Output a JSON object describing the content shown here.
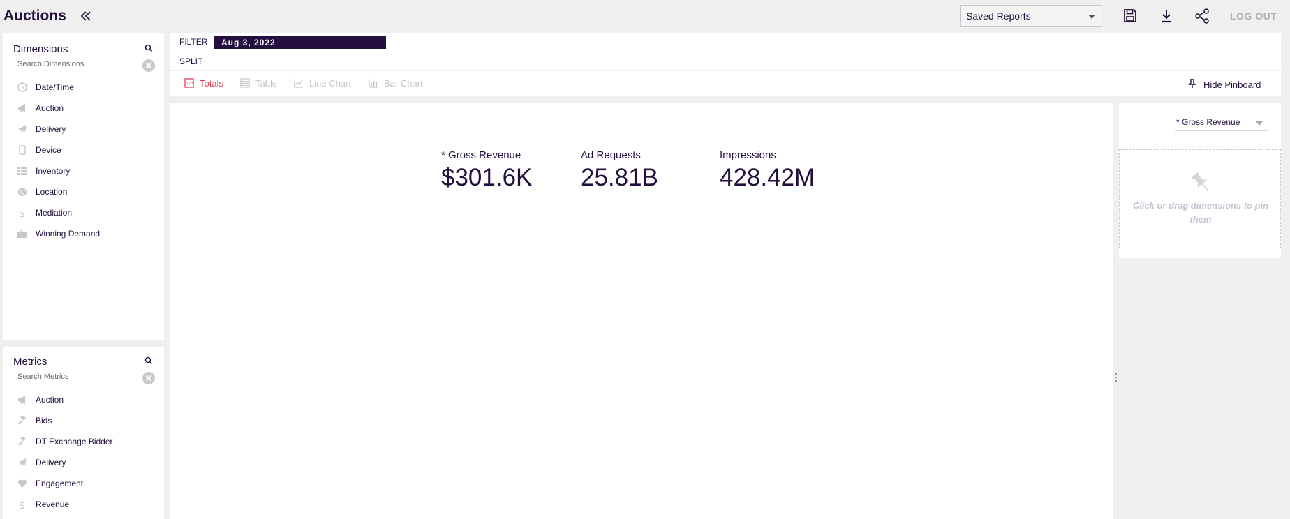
{
  "header": {
    "title": "Auctions",
    "saved_reports_label": "Saved Reports",
    "logout_label": "LOG OUT"
  },
  "dimensions": {
    "title": "Dimensions",
    "search_placeholder": "Search Dimensions",
    "items": [
      {
        "label": "Date/Time",
        "icon": "clock-icon"
      },
      {
        "label": "Auction",
        "icon": "megaphone-icon"
      },
      {
        "label": "Delivery",
        "icon": "paper-plane-icon"
      },
      {
        "label": "Device",
        "icon": "mobile-device-icon"
      },
      {
        "label": "Inventory",
        "icon": "grid-icon"
      },
      {
        "label": "Location",
        "icon": "globe-icon"
      },
      {
        "label": "Mediation",
        "icon": "dollar-icon"
      },
      {
        "label": "Winning Demand",
        "icon": "briefcase-icon"
      }
    ]
  },
  "metrics": {
    "title": "Metrics",
    "search_placeholder": "Search Metrics",
    "items": [
      {
        "label": "Auction",
        "icon": "megaphone-icon"
      },
      {
        "label": "Bids",
        "icon": "gavel-icon"
      },
      {
        "label": "DT Exchange Bidder",
        "icon": "gavel-icon"
      },
      {
        "label": "Delivery",
        "icon": "paper-plane-icon"
      },
      {
        "label": "Engagement",
        "icon": "heart-icon"
      },
      {
        "label": "Revenue",
        "icon": "dollar-icon"
      }
    ]
  },
  "filter": {
    "label": "FILTER",
    "pill": "Aug 3, 2022"
  },
  "split": {
    "label": "SPLIT"
  },
  "viz_tabs": [
    {
      "label": "Totals",
      "active": true
    },
    {
      "label": "Table",
      "active": false
    },
    {
      "label": "Line Chart",
      "active": false
    },
    {
      "label": "Bar Chart",
      "active": false
    }
  ],
  "hide_pinboard_label": "Hide Pinboard",
  "totals": [
    {
      "label": "* Gross Revenue",
      "value": "$301.6K"
    },
    {
      "label": "Ad Requests",
      "value": "25.81B"
    },
    {
      "label": "Impressions",
      "value": "428.42M"
    }
  ],
  "pinboard": {
    "sort_select": "* Gross Revenue",
    "drop_hint": "Click or drag dimensions to pin them"
  },
  "colors": {
    "brand": "#220f3d",
    "active_tab": "#e23a55",
    "filter_pill": "#250f40"
  }
}
